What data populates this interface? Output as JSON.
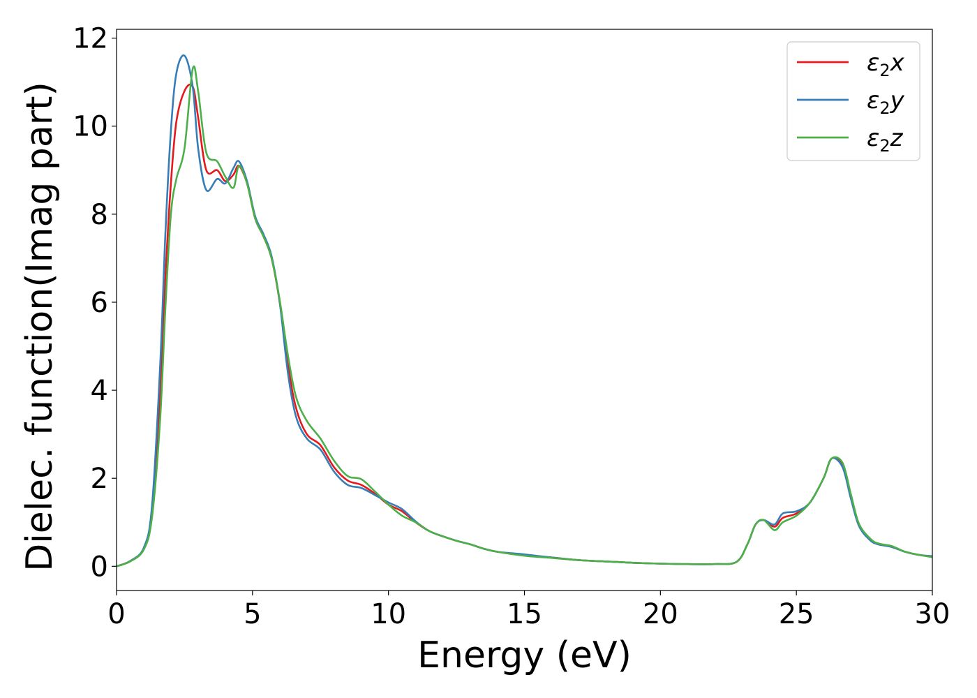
{
  "chart_data": {
    "type": "line",
    "title": "",
    "xlabel": "Energy (eV)",
    "ylabel": "Dielec. function(Imag part)",
    "xlim": [
      0,
      30
    ],
    "ylim": [
      -0.55,
      12.2
    ],
    "xticks": [
      0,
      5,
      10,
      15,
      20,
      25,
      30
    ],
    "yticks": [
      0,
      2,
      4,
      6,
      8,
      10,
      12
    ],
    "grid": false,
    "legend_position": "top-right",
    "series": [
      {
        "name": "ε2x",
        "legend_base": "ε",
        "legend_sub": "2",
        "legend_suffix": "x",
        "color": "#e41a1c",
        "x": [
          0,
          0.5,
          1.0,
          1.3,
          1.6,
          1.8,
          2.0,
          2.2,
          2.5,
          2.8,
          3.0,
          3.3,
          3.7,
          4.0,
          4.3,
          4.5,
          4.8,
          5.1,
          5.4,
          5.7,
          6.0,
          6.3,
          6.6,
          7.0,
          7.5,
          8.0,
          8.5,
          9.0,
          9.5,
          10.0,
          10.5,
          11.0,
          11.5,
          12.0,
          12.5,
          13.0,
          13.5,
          14.0,
          15.0,
          16.0,
          17.0,
          18.0,
          19.0,
          20.0,
          21.0,
          22.0,
          22.8,
          23.2,
          23.5,
          23.8,
          24.2,
          24.5,
          25.0,
          25.5,
          26.0,
          26.3,
          26.7,
          27.0,
          27.3,
          27.7,
          28.0,
          28.5,
          29.0,
          29.5,
          30.0
        ],
        "y": [
          0.0,
          0.12,
          0.4,
          1.2,
          3.8,
          6.6,
          8.7,
          10.1,
          10.8,
          10.9,
          10.2,
          9.0,
          9.0,
          8.75,
          8.9,
          9.1,
          8.7,
          7.9,
          7.5,
          7.0,
          6.0,
          4.6,
          3.6,
          3.0,
          2.75,
          2.25,
          1.95,
          1.85,
          1.65,
          1.4,
          1.25,
          1.0,
          0.8,
          0.68,
          0.58,
          0.5,
          0.4,
          0.33,
          0.25,
          0.2,
          0.14,
          0.11,
          0.08,
          0.06,
          0.05,
          0.05,
          0.1,
          0.5,
          0.95,
          1.05,
          0.9,
          1.1,
          1.2,
          1.45,
          2.0,
          2.45,
          2.3,
          1.6,
          0.95,
          0.62,
          0.52,
          0.45,
          0.33,
          0.26,
          0.22
        ]
      },
      {
        "name": "ε2y",
        "legend_base": "ε",
        "legend_sub": "2",
        "legend_suffix": "y",
        "color": "#377eb8",
        "x": [
          0,
          0.5,
          1.0,
          1.3,
          1.6,
          1.8,
          2.0,
          2.2,
          2.5,
          2.8,
          3.0,
          3.3,
          3.7,
          4.0,
          4.3,
          4.5,
          4.8,
          5.1,
          5.4,
          5.7,
          6.0,
          6.3,
          6.6,
          7.0,
          7.5,
          8.0,
          8.5,
          9.0,
          9.5,
          10.0,
          10.5,
          11.0,
          11.5,
          12.0,
          12.5,
          13.0,
          13.5,
          14.0,
          15.0,
          16.0,
          17.0,
          18.0,
          19.0,
          20.0,
          21.0,
          22.0,
          22.8,
          23.2,
          23.5,
          23.8,
          24.2,
          24.5,
          25.0,
          25.5,
          26.0,
          26.3,
          26.7,
          27.0,
          27.3,
          27.7,
          28.0,
          28.5,
          29.0,
          29.5,
          30.0
        ],
        "y": [
          0.0,
          0.12,
          0.42,
          1.35,
          4.5,
          7.6,
          9.9,
          11.2,
          11.6,
          10.9,
          9.5,
          8.55,
          8.8,
          8.7,
          9.05,
          9.2,
          8.75,
          7.95,
          7.55,
          7.05,
          6.0,
          4.4,
          3.4,
          2.9,
          2.65,
          2.15,
          1.85,
          1.78,
          1.62,
          1.45,
          1.3,
          1.02,
          0.8,
          0.68,
          0.58,
          0.5,
          0.4,
          0.33,
          0.27,
          0.2,
          0.14,
          0.11,
          0.08,
          0.06,
          0.05,
          0.05,
          0.1,
          0.5,
          0.95,
          1.05,
          0.95,
          1.2,
          1.25,
          1.45,
          2.0,
          2.45,
          2.25,
          1.55,
          0.92,
          0.6,
          0.5,
          0.44,
          0.33,
          0.26,
          0.23
        ]
      },
      {
        "name": "ε2z",
        "legend_base": "ε",
        "legend_sub": "2",
        "legend_suffix": "z",
        "color": "#4daf4a",
        "x": [
          0,
          0.5,
          1.0,
          1.3,
          1.6,
          1.8,
          2.0,
          2.2,
          2.5,
          2.8,
          3.0,
          3.3,
          3.7,
          4.0,
          4.3,
          4.5,
          4.8,
          5.1,
          5.4,
          5.7,
          6.0,
          6.3,
          6.6,
          7.0,
          7.5,
          8.0,
          8.5,
          9.0,
          9.5,
          10.0,
          10.5,
          11.0,
          11.5,
          12.0,
          12.5,
          13.0,
          13.5,
          14.0,
          15.0,
          16.0,
          17.0,
          18.0,
          19.0,
          20.0,
          21.0,
          22.0,
          22.8,
          23.2,
          23.5,
          23.8,
          24.2,
          24.5,
          25.0,
          25.5,
          26.0,
          26.3,
          26.7,
          27.0,
          27.3,
          27.7,
          28.0,
          28.5,
          29.0,
          29.5,
          30.0
        ],
        "y": [
          0.0,
          0.11,
          0.38,
          1.1,
          3.3,
          5.9,
          8.0,
          8.8,
          9.5,
          11.3,
          10.8,
          9.4,
          9.2,
          8.85,
          8.6,
          9.1,
          8.7,
          7.9,
          7.5,
          7.0,
          6.05,
          4.8,
          3.85,
          3.3,
          2.9,
          2.4,
          2.05,
          1.98,
          1.7,
          1.4,
          1.15,
          1.0,
          0.8,
          0.68,
          0.58,
          0.5,
          0.4,
          0.33,
          0.24,
          0.19,
          0.14,
          0.11,
          0.08,
          0.06,
          0.05,
          0.05,
          0.1,
          0.5,
          0.95,
          1.05,
          0.82,
          1.0,
          1.15,
          1.45,
          2.0,
          2.45,
          2.35,
          1.65,
          0.97,
          0.64,
          0.52,
          0.46,
          0.33,
          0.26,
          0.21
        ]
      }
    ]
  }
}
